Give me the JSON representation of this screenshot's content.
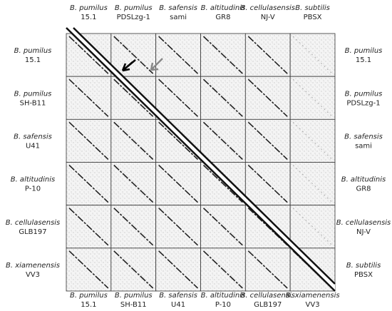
{
  "top_labels": [
    {
      "species": "B. pumilus",
      "strain": "15.1"
    },
    {
      "species": "B. pumilus",
      "strain": "PDSLzg-1"
    },
    {
      "species": "B. safensis",
      "strain": "sami"
    },
    {
      "species": "B. altitudinis",
      "strain": "GR8"
    },
    {
      "species": "B. cellulasensis",
      "strain": "NJ-V"
    },
    {
      "species": "B. subtilis",
      "strain": "PBSX"
    }
  ],
  "right_labels": [
    {
      "species": "B. pumilus",
      "strain": "15.1"
    },
    {
      "species": "B. pumilus",
      "strain": "PDSLzg-1"
    },
    {
      "species": "B. safensis",
      "strain": "sami"
    },
    {
      "species": "B. altitudinis",
      "strain": "GR8"
    },
    {
      "species": "B. cellulasensis",
      "strain": "NJ-V"
    },
    {
      "species": "B. subtilis",
      "strain": "PBSX"
    }
  ],
  "left_labels": [
    {
      "species": "B. pumilus",
      "strain": "15.1"
    },
    {
      "species": "B. pumilus",
      "strain": "SH-B11"
    },
    {
      "species": "B. safensis",
      "strain": "U41"
    },
    {
      "species": "B. altitudinis",
      "strain": "P-10"
    },
    {
      "species": "B. cellulasensis",
      "strain": "GLB197"
    },
    {
      "species": "B. xiamenensis",
      "strain": "VV3"
    }
  ],
  "bottom_labels": [
    {
      "species": "B. pumilus",
      "strain": "15.1"
    },
    {
      "species": "B. pumilus",
      "strain": "SH-B11"
    },
    {
      "species": "B. safensis",
      "strain": "U41"
    },
    {
      "species": "B. altitudinis",
      "strain": "P-10"
    },
    {
      "species": "B. cellulasensis",
      "strain": "GLB197"
    },
    {
      "species": "B. xiamenensis",
      "strain": "VV3"
    }
  ]
}
